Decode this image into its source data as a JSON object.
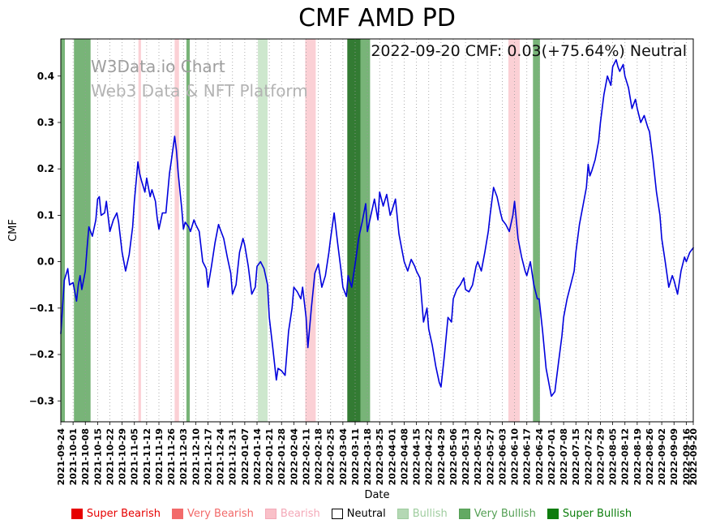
{
  "title": "CMF AMD PD",
  "annotation": "2022-09-20 CMF: 0.03(+75.64%) Neutral",
  "watermark": {
    "line1": "W3Data.io Chart",
    "line2": "Web3 Data & NFT Platform"
  },
  "chart_data": {
    "type": "line",
    "title": "CMF AMD PD",
    "xlabel": "Date",
    "ylabel": "CMF",
    "ylim": [
      -0.345,
      0.48
    ],
    "grid": "vertical-dotted",
    "legend_position": "bottom",
    "x_unit": "days since 2021-09-24",
    "xticks": [
      "2021-09-24",
      "2021-10-01",
      "2021-10-08",
      "2021-10-15",
      "2021-10-22",
      "2021-10-29",
      "2021-11-05",
      "2021-11-12",
      "2021-11-19",
      "2021-11-26",
      "2021-12-03",
      "2021-12-10",
      "2021-12-17",
      "2021-12-24",
      "2021-12-31",
      "2022-01-07",
      "2022-01-14",
      "2022-01-21",
      "2022-01-28",
      "2022-02-04",
      "2022-02-11",
      "2022-02-18",
      "2022-02-25",
      "2022-03-04",
      "2022-03-11",
      "2022-03-18",
      "2022-03-25",
      "2022-04-01",
      "2022-04-08",
      "2022-04-15",
      "2022-04-22",
      "2022-04-29",
      "2022-05-06",
      "2022-05-13",
      "2022-05-20",
      "2022-05-27",
      "2022-06-03",
      "2022-06-10",
      "2022-06-17",
      "2022-06-24",
      "2022-07-01",
      "2022-07-08",
      "2022-07-15",
      "2022-07-22",
      "2022-07-29",
      "2022-08-05",
      "2022-08-12",
      "2022-08-19",
      "2022-08-26",
      "2022-09-02",
      "2022-09-09",
      "2022-09-16",
      "2022-09-20"
    ],
    "yticks": [
      {
        "v": -0.3,
        "label": "−0.3"
      },
      {
        "v": -0.2,
        "label": "−0.2"
      },
      {
        "v": -0.1,
        "label": "−0.1"
      },
      {
        "v": 0.0,
        "label": "0.0"
      },
      {
        "v": 0.1,
        "label": "0.1"
      },
      {
        "v": 0.2,
        "label": "0.2"
      },
      {
        "v": 0.3,
        "label": "0.3"
      },
      {
        "v": 0.4,
        "label": "0.4"
      }
    ],
    "series": {
      "name": "CMF",
      "color": "#0000dd",
      "points": [
        [
          0,
          -0.155
        ],
        [
          2,
          -0.04
        ],
        [
          4,
          -0.015
        ],
        [
          5,
          -0.05
        ],
        [
          7,
          -0.045
        ],
        [
          9,
          -0.085
        ],
        [
          10,
          -0.05
        ],
        [
          11,
          -0.03
        ],
        [
          12,
          -0.06
        ],
        [
          14,
          -0.02
        ],
        [
          15,
          0.03
        ],
        [
          16,
          0.075
        ],
        [
          18,
          0.055
        ],
        [
          20,
          0.09
        ],
        [
          21,
          0.135
        ],
        [
          22,
          0.14
        ],
        [
          23,
          0.1
        ],
        [
          25,
          0.105
        ],
        [
          26,
          0.13
        ],
        [
          28,
          0.065
        ],
        [
          30,
          0.09
        ],
        [
          32,
          0.105
        ],
        [
          33,
          0.085
        ],
        [
          35,
          0.02
        ],
        [
          37,
          -0.02
        ],
        [
          39,
          0.015
        ],
        [
          41,
          0.075
        ],
        [
          42,
          0.13
        ],
        [
          44,
          0.215
        ],
        [
          45,
          0.19
        ],
        [
          46,
          0.175
        ],
        [
          48,
          0.15
        ],
        [
          49,
          0.18
        ],
        [
          51,
          0.14
        ],
        [
          52,
          0.155
        ],
        [
          54,
          0.13
        ],
        [
          55,
          0.095
        ],
        [
          56,
          0.07
        ],
        [
          58,
          0.105
        ],
        [
          60,
          0.105
        ],
        [
          62,
          0.19
        ],
        [
          63,
          0.215
        ],
        [
          65,
          0.27
        ],
        [
          66,
          0.24
        ],
        [
          67,
          0.19
        ],
        [
          69,
          0.115
        ],
        [
          70,
          0.07
        ],
        [
          71,
          0.085
        ],
        [
          73,
          0.075
        ],
        [
          74,
          0.065
        ],
        [
          76,
          0.09
        ],
        [
          77,
          0.08
        ],
        [
          79,
          0.065
        ],
        [
          81,
          0
        ],
        [
          83,
          -0.015
        ],
        [
          84,
          -0.055
        ],
        [
          86,
          -0.01
        ],
        [
          88,
          0.04
        ],
        [
          90,
          0.08
        ],
        [
          91,
          0.07
        ],
        [
          93,
          0.05
        ],
        [
          95,
          0.01
        ],
        [
          97,
          -0.025
        ],
        [
          98,
          -0.07
        ],
        [
          100,
          -0.05
        ],
        [
          102,
          0.02
        ],
        [
          104,
          0.05
        ],
        [
          105,
          0.035
        ],
        [
          107,
          -0.01
        ],
        [
          109,
          -0.07
        ],
        [
          111,
          -0.055
        ],
        [
          112,
          -0.01
        ],
        [
          114,
          0
        ],
        [
          116,
          -0.015
        ],
        [
          118,
          -0.05
        ],
        [
          119,
          -0.12
        ],
        [
          121,
          -0.185
        ],
        [
          123,
          -0.255
        ],
        [
          124,
          -0.23
        ],
        [
          126,
          -0.235
        ],
        [
          128,
          -0.245
        ],
        [
          130,
          -0.15
        ],
        [
          132,
          -0.1
        ],
        [
          133,
          -0.055
        ],
        [
          135,
          -0.065
        ],
        [
          137,
          -0.08
        ],
        [
          138,
          -0.055
        ],
        [
          140,
          -0.12
        ],
        [
          141,
          -0.185
        ],
        [
          143,
          -0.1
        ],
        [
          145,
          -0.025
        ],
        [
          147,
          -0.005
        ],
        [
          149,
          -0.055
        ],
        [
          151,
          -0.03
        ],
        [
          153,
          0.02
        ],
        [
          154,
          0.05
        ],
        [
          156,
          0.105
        ],
        [
          158,
          0.04
        ],
        [
          160,
          -0.02
        ],
        [
          161,
          -0.055
        ],
        [
          163,
          -0.075
        ],
        [
          164,
          -0.03
        ],
        [
          166,
          -0.055
        ],
        [
          168,
          -0.005
        ],
        [
          170,
          0.05
        ],
        [
          172,
          0.085
        ],
        [
          174,
          0.125
        ],
        [
          175,
          0.065
        ],
        [
          177,
          0.1
        ],
        [
          179,
          0.135
        ],
        [
          181,
          0.09
        ],
        [
          182,
          0.15
        ],
        [
          184,
          0.12
        ],
        [
          186,
          0.145
        ],
        [
          188,
          0.1
        ],
        [
          189,
          0.11
        ],
        [
          191,
          0.135
        ],
        [
          193,
          0.06
        ],
        [
          195,
          0.02
        ],
        [
          196,
          0
        ],
        [
          198,
          -0.02
        ],
        [
          200,
          0.005
        ],
        [
          202,
          -0.01
        ],
        [
          203,
          -0.02
        ],
        [
          205,
          -0.035
        ],
        [
          207,
          -0.13
        ],
        [
          209,
          -0.1
        ],
        [
          210,
          -0.145
        ],
        [
          212,
          -0.18
        ],
        [
          214,
          -0.225
        ],
        [
          216,
          -0.26
        ],
        [
          217,
          -0.27
        ],
        [
          219,
          -0.2
        ],
        [
          221,
          -0.12
        ],
        [
          223,
          -0.13
        ],
        [
          224,
          -0.08
        ],
        [
          226,
          -0.06
        ],
        [
          228,
          -0.05
        ],
        [
          230,
          -0.035
        ],
        [
          231,
          -0.06
        ],
        [
          233,
          -0.065
        ],
        [
          235,
          -0.05
        ],
        [
          237,
          -0.01
        ],
        [
          238,
          0
        ],
        [
          240,
          -0.02
        ],
        [
          242,
          0.02
        ],
        [
          244,
          0.065
        ],
        [
          245,
          0.1
        ],
        [
          247,
          0.16
        ],
        [
          249,
          0.14
        ],
        [
          251,
          0.105
        ],
        [
          252,
          0.09
        ],
        [
          254,
          0.08
        ],
        [
          256,
          0.065
        ],
        [
          258,
          0.1
        ],
        [
          259,
          0.13
        ],
        [
          261,
          0.05
        ],
        [
          263,
          0.01
        ],
        [
          265,
          -0.02
        ],
        [
          266,
          -0.03
        ],
        [
          268,
          0
        ],
        [
          270,
          -0.05
        ],
        [
          272,
          -0.08
        ],
        [
          273,
          -0.08
        ],
        [
          275,
          -0.15
        ],
        [
          277,
          -0.23
        ],
        [
          279,
          -0.27
        ],
        [
          280,
          -0.29
        ],
        [
          282,
          -0.28
        ],
        [
          284,
          -0.22
        ],
        [
          286,
          -0.16
        ],
        [
          287,
          -0.12
        ],
        [
          289,
          -0.08
        ],
        [
          291,
          -0.05
        ],
        [
          293,
          -0.02
        ],
        [
          294,
          0.02
        ],
        [
          296,
          0.08
        ],
        [
          298,
          0.12
        ],
        [
          300,
          0.16
        ],
        [
          301,
          0.21
        ],
        [
          302,
          0.185
        ],
        [
          303,
          0.195
        ],
        [
          305,
          0.22
        ],
        [
          307,
          0.26
        ],
        [
          308,
          0.3
        ],
        [
          310,
          0.36
        ],
        [
          312,
          0.4
        ],
        [
          314,
          0.38
        ],
        [
          315,
          0.42
        ],
        [
          317,
          0.435
        ],
        [
          318,
          0.42
        ],
        [
          319,
          0.41
        ],
        [
          321,
          0.425
        ],
        [
          322,
          0.4
        ],
        [
          324,
          0.375
        ],
        [
          326,
          0.33
        ],
        [
          328,
          0.35
        ],
        [
          329,
          0.33
        ],
        [
          331,
          0.3
        ],
        [
          333,
          0.315
        ],
        [
          335,
          0.29
        ],
        [
          336,
          0.28
        ],
        [
          338,
          0.22
        ],
        [
          340,
          0.15
        ],
        [
          342,
          0.1
        ],
        [
          343,
          0.05
        ],
        [
          345,
          0
        ],
        [
          347,
          -0.055
        ],
        [
          349,
          -0.03
        ],
        [
          350,
          -0.04
        ],
        [
          352,
          -0.07
        ],
        [
          354,
          -0.02
        ],
        [
          356,
          0.01
        ],
        [
          357,
          0
        ],
        [
          359,
          0.02
        ],
        [
          361,
          0.03
        ]
      ]
    },
    "regions": [
      {
        "start": 0,
        "end": 2.3,
        "type": "very_bullish"
      },
      {
        "start": 7.5,
        "end": 17,
        "type": "very_bullish"
      },
      {
        "start": 44.3,
        "end": 45.8,
        "type": "bearish"
      },
      {
        "start": 65,
        "end": 67.5,
        "type": "bearish"
      },
      {
        "start": 71.7,
        "end": 73.6,
        "type": "very_bullish"
      },
      {
        "start": 112.5,
        "end": 118,
        "type": "bullish"
      },
      {
        "start": 139.5,
        "end": 145.5,
        "type": "bearish"
      },
      {
        "start": 163.5,
        "end": 171,
        "type": "super_bullish"
      },
      {
        "start": 171,
        "end": 176.5,
        "type": "very_bullish"
      },
      {
        "start": 255.5,
        "end": 262,
        "type": "bearish"
      },
      {
        "start": 269.5,
        "end": 273.5,
        "type": "very_bullish"
      }
    ],
    "band_colors": {
      "bearish": "rgba(244,120,135,0.35)",
      "bullish": "rgba(130,195,130,0.40)",
      "very_bullish": "rgba(30,130,30,0.60)",
      "super_bullish": "rgba(0,90,0,0.80)"
    },
    "legend": [
      {
        "label": "Super Bearish",
        "color": "#e60000",
        "text_color": "#e60000",
        "border": "#e60000"
      },
      {
        "label": "Very Bearish",
        "color": "#f26a6a",
        "text_color": "#f26a6a",
        "border": "#f26a6a"
      },
      {
        "label": "Bearish",
        "color": "#f9c0c8",
        "text_color": "#f4a9b8",
        "border": "#f4a9b8"
      },
      {
        "label": "Neutral",
        "color": "#ffffff",
        "text_color": "#000000",
        "border": "#000000"
      },
      {
        "label": "Bullish",
        "color": "#b4d8b4",
        "text_color": "#9fcd9f",
        "border": "#9fcd9f"
      },
      {
        "label": "Very Bullish",
        "color": "#63a963",
        "text_color": "#55a055",
        "border": "#55a055"
      },
      {
        "label": "Super Bullish",
        "color": "#0f7c0f",
        "text_color": "#0a7d0a",
        "border": "#0a7d0a"
      }
    ]
  }
}
